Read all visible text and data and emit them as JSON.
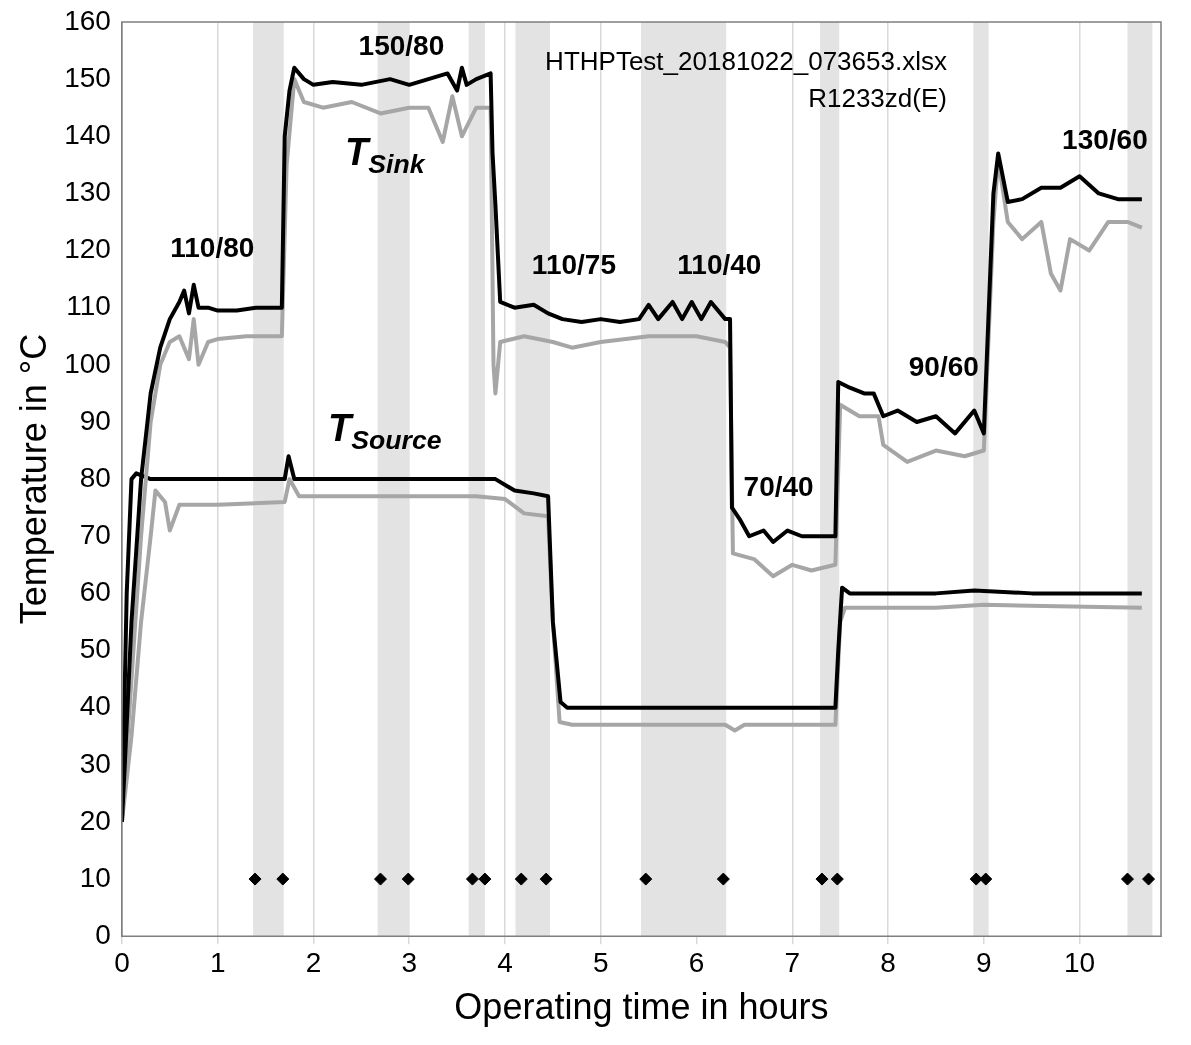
{
  "chart_data": {
    "type": "line",
    "xlabel": "Operating time in hours",
    "ylabel": "Temperature in °C",
    "xlim": [
      0,
      10.85
    ],
    "xticks": [
      0,
      1,
      2,
      3,
      4,
      5,
      6,
      7,
      8,
      9,
      10
    ],
    "ylim": [
      0,
      160
    ],
    "yticks": [
      0,
      10,
      20,
      30,
      40,
      50,
      60,
      70,
      80,
      90,
      100,
      110,
      120,
      130,
      140,
      150,
      160
    ],
    "grid": "x",
    "legend": false,
    "marker": "none",
    "line_style": "solid",
    "series": [
      {
        "color": "#000000",
        "x": [
          0,
          0.03,
          0.1,
          0.2,
          0.3,
          0.4,
          0.5,
          0.6,
          0.65,
          0.7,
          0.75,
          0.8,
          0.9,
          1.0,
          1.2,
          1.4,
          1.67,
          1.7,
          1.75,
          1.8,
          1.9,
          2.0,
          2.2,
          2.5,
          2.8,
          3.0,
          3.2,
          3.4,
          3.5,
          3.55,
          3.6,
          3.7,
          3.85,
          3.87,
          3.9,
          3.95,
          4.1,
          4.3,
          4.45,
          4.6,
          4.8,
          5.0,
          5.2,
          5.4,
          5.5,
          5.6,
          5.75,
          5.85,
          5.95,
          6.05,
          6.15,
          6.3,
          6.35,
          6.37,
          6.45,
          6.55,
          6.7,
          6.8,
          6.95,
          7.1,
          7.3,
          7.45,
          7.48,
          7.6,
          7.75,
          7.85,
          7.95,
          8.1,
          8.3,
          8.5,
          8.7,
          8.9,
          9.0,
          9.1,
          9.15,
          9.25,
          9.4,
          9.6,
          9.8,
          10.0,
          10.2,
          10.4,
          10.65
        ],
        "values": [
          20,
          30,
          55,
          80,
          95,
          103,
          108,
          111,
          113,
          109,
          114,
          110,
          110,
          109.5,
          109.5,
          110,
          110,
          140,
          148,
          152,
          150,
          149,
          149.5,
          149,
          150,
          149,
          150,
          151,
          148,
          152,
          149,
          150,
          151,
          137,
          128,
          111,
          110,
          110.5,
          109,
          108,
          107.5,
          108,
          107.5,
          108,
          110.5,
          108,
          111,
          108,
          111,
          108,
          111,
          108,
          108,
          75,
          73,
          70,
          71,
          69,
          71,
          70,
          70,
          70,
          97,
          96,
          95,
          95,
          91,
          92,
          90,
          91,
          88,
          92,
          88,
          130,
          137,
          128.5,
          129,
          131,
          131,
          133,
          130,
          129,
          129
        ]
      },
      {
        "color": "#a6a6a6",
        "x": [
          0,
          0.1,
          0.2,
          0.3,
          0.4,
          0.5,
          0.6,
          0.7,
          0.75,
          0.8,
          0.9,
          1.0,
          1.3,
          1.67,
          1.72,
          1.8,
          1.9,
          2.1,
          2.4,
          2.7,
          3.0,
          3.2,
          3.35,
          3.45,
          3.55,
          3.7,
          3.85,
          3.88,
          3.9,
          3.95,
          4.2,
          4.5,
          4.7,
          5.0,
          5.5,
          6.0,
          6.3,
          6.35,
          6.38,
          6.6,
          6.8,
          7.0,
          7.2,
          7.45,
          7.5,
          7.7,
          7.9,
          7.95,
          8.2,
          8.5,
          8.8,
          9.0,
          9.1,
          9.15,
          9.25,
          9.4,
          9.6,
          9.7,
          9.8,
          9.9,
          10.1,
          10.3,
          10.5,
          10.65
        ],
        "values": [
          20,
          45,
          70,
          90,
          100,
          104,
          105,
          101,
          108,
          100,
          104,
          104.5,
          105,
          105,
          135,
          150,
          146,
          145,
          146,
          144,
          145,
          145,
          139,
          147,
          140,
          145,
          145,
          100,
          95,
          104,
          105,
          104,
          103,
          104,
          105,
          105,
          104,
          103,
          67,
          66,
          63,
          65,
          64,
          65,
          93,
          91,
          91,
          86,
          83,
          85,
          84,
          85,
          125,
          136,
          125,
          122,
          125,
          116,
          113,
          122,
          120,
          125,
          125,
          124
        ]
      },
      {
        "color": "#000000",
        "x": [
          0,
          0.05,
          0.1,
          0.15,
          0.3,
          1.0,
          1.7,
          1.74,
          1.8,
          2.5,
          3.3,
          3.7,
          3.9,
          4.1,
          4.3,
          4.45,
          4.5,
          4.58,
          4.65,
          5.5,
          6.5,
          7.45,
          7.48,
          7.52,
          7.6,
          8.5,
          8.9,
          9.5,
          10.65
        ],
        "values": [
          20,
          60,
          80,
          81,
          80,
          80,
          80,
          84,
          80,
          80,
          80,
          80,
          80,
          78,
          77.5,
          77,
          55,
          41,
          40,
          40,
          40,
          40,
          50,
          61,
          60,
          60,
          60.5,
          60,
          60
        ]
      },
      {
        "color": "#a6a6a6",
        "x": [
          0,
          0.1,
          0.2,
          0.3,
          0.35,
          0.45,
          0.5,
          0.6,
          1.0,
          1.7,
          1.75,
          1.85,
          2.5,
          3.3,
          3.7,
          4.0,
          4.2,
          4.45,
          4.5,
          4.57,
          4.7,
          5.5,
          6.3,
          6.4,
          6.5,
          7.45,
          7.5,
          7.55,
          8.5,
          9.0,
          10.65
        ],
        "values": [
          20,
          35,
          55,
          70,
          78,
          76,
          71,
          75.5,
          75.5,
          76,
          80,
          77,
          77,
          77,
          77,
          76.5,
          74,
          73.5,
          55,
          37.5,
          37,
          37,
          37,
          36,
          37,
          37,
          55,
          57.5,
          57.5,
          58,
          57.5
        ]
      },
      {
        "type": "scatter",
        "marker": "diamond",
        "color": "#000000",
        "x": [
          1.39,
          1.68,
          2.7,
          2.99,
          3.66,
          3.79,
          4.17,
          4.43,
          5.47,
          6.28,
          7.31,
          7.47,
          8.92,
          9.02,
          10.5,
          10.72
        ],
        "values": [
          10,
          10,
          10,
          10,
          10,
          10,
          10,
          10,
          10,
          10,
          10,
          10,
          10,
          10,
          10,
          10
        ]
      }
    ],
    "bands": [
      {
        "axis": "x",
        "from": 1.37,
        "to": 1.69,
        "color": "#e3e3e3"
      },
      {
        "axis": "x",
        "from": 2.67,
        "to": 3.0,
        "color": "#e3e3e3"
      },
      {
        "axis": "x",
        "from": 3.62,
        "to": 3.79,
        "color": "#e3e3e3"
      },
      {
        "axis": "x",
        "from": 4.11,
        "to": 4.47,
        "color": "#e3e3e3"
      },
      {
        "axis": "x",
        "from": 5.42,
        "to": 6.31,
        "color": "#e3e3e3"
      },
      {
        "axis": "x",
        "from": 7.29,
        "to": 7.49,
        "color": "#e3e3e3"
      },
      {
        "axis": "x",
        "from": 8.89,
        "to": 9.05,
        "color": "#e3e3e3"
      },
      {
        "axis": "x",
        "from": 10.5,
        "to": 10.76,
        "color": "#e3e3e3"
      }
    ],
    "annotations": [
      "HTHPTest_20181022_073653.xlsx",
      "R1233zd(E)",
      "110/80",
      "150/80",
      "T$_{Sink}$",
      "110/75",
      "110/40",
      "T$_{Source}$",
      "70/40",
      "90/60",
      "130/60"
    ]
  }
}
